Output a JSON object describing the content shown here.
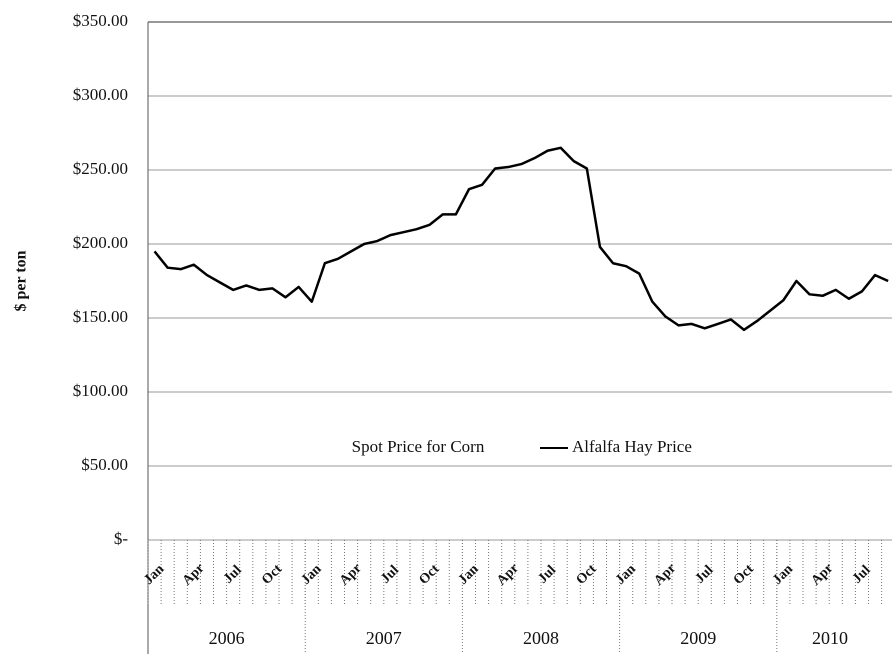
{
  "chart_data": {
    "type": "line",
    "y_label": "$ per ton",
    "categories": [
      "Jan",
      null,
      null,
      "Apr",
      null,
      null,
      "Jul",
      null,
      null,
      "Oct",
      null,
      null,
      "Jan",
      null,
      null,
      "Apr",
      null,
      null,
      "Jul",
      null,
      null,
      "Oct",
      null,
      null,
      "Jan",
      null,
      null,
      "Apr",
      null,
      null,
      "Jul",
      null,
      null,
      "Oct",
      null,
      null,
      "Jan",
      null,
      null,
      "Apr",
      null,
      null,
      "Jul",
      null,
      null,
      "Oct",
      null,
      null,
      "Jan",
      null,
      null,
      "Apr",
      null,
      null,
      "Jul",
      null,
      null
    ],
    "years": [
      "2006",
      "2007",
      "2008",
      "2009",
      "2010"
    ],
    "series": [
      {
        "name": "Spot Price for Corn",
        "color": "#ffffff",
        "values": [
          null,
          null,
          null,
          null,
          null,
          null,
          null,
          null,
          null,
          null,
          null,
          null,
          null,
          null,
          null,
          null,
          null,
          null,
          null,
          null,
          null,
          null,
          null,
          null,
          null,
          null,
          null,
          null,
          null,
          null,
          null,
          null,
          null,
          null,
          null,
          null,
          null,
          null,
          null,
          null,
          null,
          null,
          null,
          null,
          null,
          null,
          null,
          null,
          null,
          null,
          null,
          null,
          null,
          null,
          null,
          null,
          null
        ]
      },
      {
        "name": "Alfalfa Hay Price",
        "color": "#000000",
        "values": [
          195,
          184,
          183,
          186,
          179,
          174,
          169,
          172,
          169,
          170,
          164,
          171,
          161,
          187,
          190,
          195,
          200,
          202,
          206,
          208,
          210,
          213,
          220,
          220,
          237,
          240,
          251,
          252,
          254,
          258,
          263,
          265,
          256,
          251,
          198,
          187,
          185,
          180,
          161,
          151,
          145,
          146,
          143,
          146,
          149,
          142,
          148,
          155,
          162,
          175,
          166,
          165,
          169,
          163,
          168,
          179,
          175
        ]
      }
    ],
    "ylim": [
      0,
      350
    ],
    "yticks": [
      {
        "value": 0,
        "label": "$-"
      },
      {
        "value": 50,
        "label": "$50.00"
      },
      {
        "value": 100,
        "label": "$100.00"
      },
      {
        "value": 150,
        "label": "$150.00"
      },
      {
        "value": 200,
        "label": "$200.00"
      },
      {
        "value": 250,
        "label": "$250.00"
      },
      {
        "value": 300,
        "label": "$300.00"
      },
      {
        "value": 350,
        "label": "$350.00"
      }
    ],
    "grid": true
  }
}
